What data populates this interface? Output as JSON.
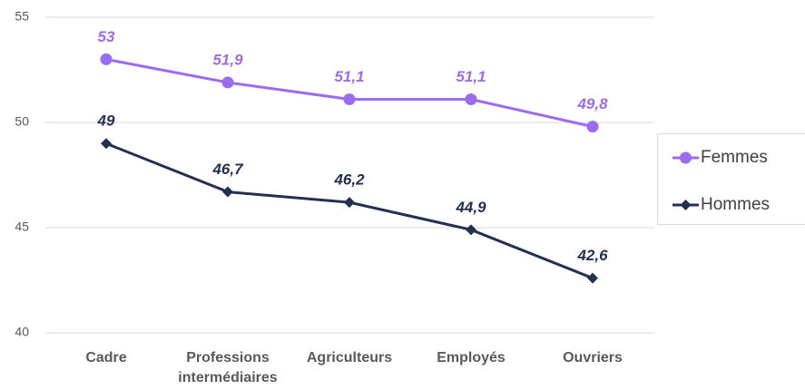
{
  "chart_data": {
    "type": "line",
    "categories": [
      "Cadre",
      "Professions intermédiaires",
      "Agriculteurs",
      "Employés",
      "Ouvriers"
    ],
    "series": [
      {
        "name": "Femmes",
        "color": "#9b6cf0",
        "marker": "circle",
        "values": [
          53,
          51.9,
          51.1,
          51.1,
          49.8
        ],
        "value_labels": [
          "53",
          "51,9",
          "51,1",
          "51,1",
          "49,8"
        ]
      },
      {
        "name": "Hommes",
        "color": "#243052",
        "marker": "diamond",
        "values": [
          49,
          46.7,
          46.2,
          44.9,
          42.6
        ],
        "value_labels": [
          "49",
          "46,7",
          "46,2",
          "44,9",
          "42,6"
        ]
      }
    ],
    "ylim": [
      40,
      55
    ],
    "yticks": [
      40,
      45,
      50,
      55
    ],
    "grid": true,
    "legend": "right"
  }
}
